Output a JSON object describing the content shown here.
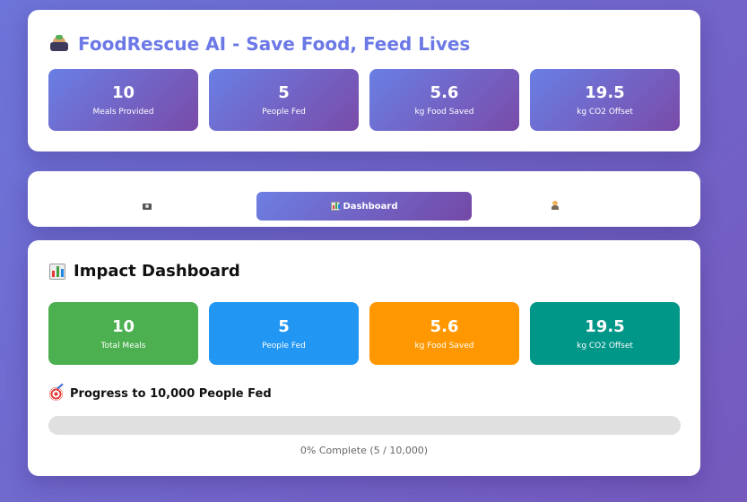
{
  "app": {
    "title": "FoodRescue AI - Save Food, Feed Lives",
    "logo_icon": "bowl-icon",
    "stats": [
      {
        "value": "10",
        "label": "Meals Provided"
      },
      {
        "value": "5",
        "label": "People Fed"
      },
      {
        "value": "5.6",
        "label": "kg Food Saved"
      },
      {
        "value": "19.5",
        "label": "kg CO2 Offset"
      }
    ]
  },
  "tabs": [
    {
      "icon": "camera-icon",
      "label": ""
    },
    {
      "icon": "chart-icon",
      "label": "Dashboard",
      "active": true
    },
    {
      "icon": "person-icon",
      "label": ""
    }
  ],
  "dashboard": {
    "title": "Impact Dashboard",
    "icon": "chart-icon",
    "stats": [
      {
        "value": "10",
        "label": "Total Meals",
        "color": "#4caf50"
      },
      {
        "value": "5",
        "label": "People Fed",
        "color": "#2196f3"
      },
      {
        "value": "5.6",
        "label": "kg Food Saved",
        "color": "#ff9800"
      },
      {
        "value": "19.5",
        "label": "kg CO2 Offset",
        "color": "#009688"
      }
    ],
    "progress": {
      "title": "Progress to 10,000 People Fed",
      "icon": "target-icon",
      "percent": 0,
      "text": "0% Complete (5 / 10,000)"
    }
  },
  "colors": {
    "accent": "#6b78e6",
    "gradient_start": "#6a7fe4",
    "gradient_end": "#7a4ba9"
  }
}
